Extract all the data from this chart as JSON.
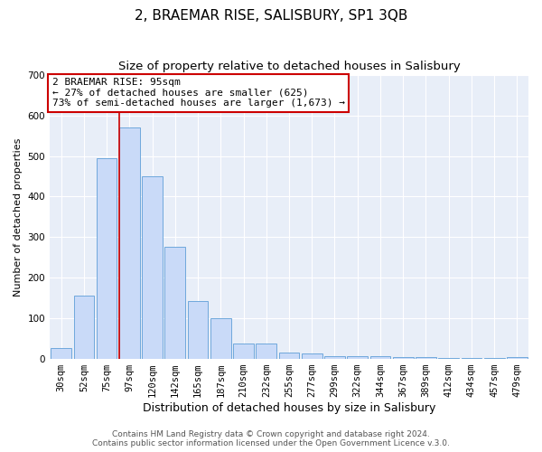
{
  "title": "2, BRAEMAR RISE, SALISBURY, SP1 3QB",
  "subtitle": "Size of property relative to detached houses in Salisbury",
  "xlabel": "Distribution of detached houses by size in Salisbury",
  "ylabel": "Number of detached properties",
  "bar_labels": [
    "30sqm",
    "52sqm",
    "75sqm",
    "97sqm",
    "120sqm",
    "142sqm",
    "165sqm",
    "187sqm",
    "210sqm",
    "232sqm",
    "255sqm",
    "277sqm",
    "299sqm",
    "322sqm",
    "344sqm",
    "367sqm",
    "389sqm",
    "412sqm",
    "434sqm",
    "457sqm",
    "479sqm"
  ],
  "bar_values": [
    25,
    155,
    495,
    570,
    450,
    275,
    143,
    100,
    37,
    36,
    15,
    12,
    5,
    5,
    5,
    3,
    3,
    1,
    1,
    1,
    3
  ],
  "bar_color": "#c9daf8",
  "bar_edge_color": "#6fa8dc",
  "vline_color": "#cc0000",
  "annotation_line1": "2 BRAEMAR RISE: 95sqm",
  "annotation_line2": "← 27% of detached houses are smaller (625)",
  "annotation_line3": "73% of semi-detached houses are larger (1,673) →",
  "annotation_box_edge": "#cc0000",
  "ylim": [
    0,
    700
  ],
  "yticks": [
    0,
    100,
    200,
    300,
    400,
    500,
    600,
    700
  ],
  "footer_line1": "Contains HM Land Registry data © Crown copyright and database right 2024.",
  "footer_line2": "Contains public sector information licensed under the Open Government Licence v.3.0.",
  "title_fontsize": 11,
  "subtitle_fontsize": 9.5,
  "xlabel_fontsize": 9,
  "ylabel_fontsize": 8,
  "tick_fontsize": 7.5,
  "annotation_fontsize": 8,
  "footer_fontsize": 6.5,
  "fig_bg": "#ffffff",
  "plot_bg": "#e8eef8"
}
